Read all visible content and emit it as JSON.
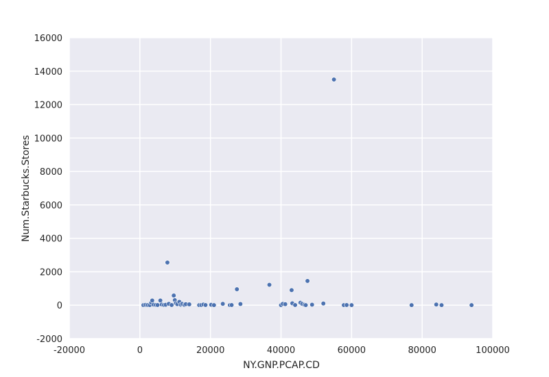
{
  "chart_data": {
    "type": "scatter",
    "xlabel": "NY.GNP.PCAP.CD",
    "ylabel": "Num.Starbucks.Stores",
    "xlim": [
      -20000,
      100000
    ],
    "ylim": [
      -2000,
      16000
    ],
    "xticks": [
      -20000,
      0,
      20000,
      40000,
      60000,
      80000,
      100000
    ],
    "yticks": [
      -2000,
      0,
      2000,
      4000,
      6000,
      8000,
      10000,
      12000,
      14000,
      16000
    ],
    "grid": true,
    "colors": {
      "background": "#eaeaf2",
      "grid": "#ffffff",
      "point": "#4c72b0"
    },
    "points": [
      [
        1000,
        5
      ],
      [
        1600,
        20
      ],
      [
        2200,
        10
      ],
      [
        2800,
        3
      ],
      [
        3200,
        150
      ],
      [
        3500,
        280
      ],
      [
        3900,
        30
      ],
      [
        4500,
        12
      ],
      [
        5000,
        8
      ],
      [
        5800,
        280
      ],
      [
        6200,
        40
      ],
      [
        6800,
        15
      ],
      [
        7300,
        25
      ],
      [
        7800,
        2550
      ],
      [
        8200,
        80
      ],
      [
        9000,
        10
      ],
      [
        9600,
        580
      ],
      [
        9900,
        300
      ],
      [
        10200,
        120
      ],
      [
        10600,
        60
      ],
      [
        11200,
        200
      ],
      [
        11600,
        30
      ],
      [
        12000,
        80
      ],
      [
        12600,
        20
      ],
      [
        13000,
        60
      ],
      [
        14000,
        50
      ],
      [
        16800,
        5
      ],
      [
        17400,
        10
      ],
      [
        18000,
        40
      ],
      [
        18600,
        8
      ],
      [
        20200,
        25
      ],
      [
        21000,
        5
      ],
      [
        23500,
        80
      ],
      [
        25500,
        5
      ],
      [
        26000,
        10
      ],
      [
        27500,
        950
      ],
      [
        28500,
        70
      ],
      [
        36700,
        1220
      ],
      [
        40000,
        5
      ],
      [
        40500,
        80
      ],
      [
        41200,
        60
      ],
      [
        43000,
        900
      ],
      [
        43200,
        110
      ],
      [
        44000,
        10
      ],
      [
        45500,
        150
      ],
      [
        46000,
        80
      ],
      [
        46600,
        30
      ],
      [
        47000,
        5
      ],
      [
        47500,
        1450
      ],
      [
        48800,
        30
      ],
      [
        52000,
        100
      ],
      [
        55000,
        13500
      ],
      [
        57800,
        5
      ],
      [
        58600,
        10
      ],
      [
        60000,
        5
      ],
      [
        77000,
        5
      ],
      [
        84000,
        40
      ],
      [
        85500,
        5
      ],
      [
        94000,
        5
      ]
    ]
  }
}
